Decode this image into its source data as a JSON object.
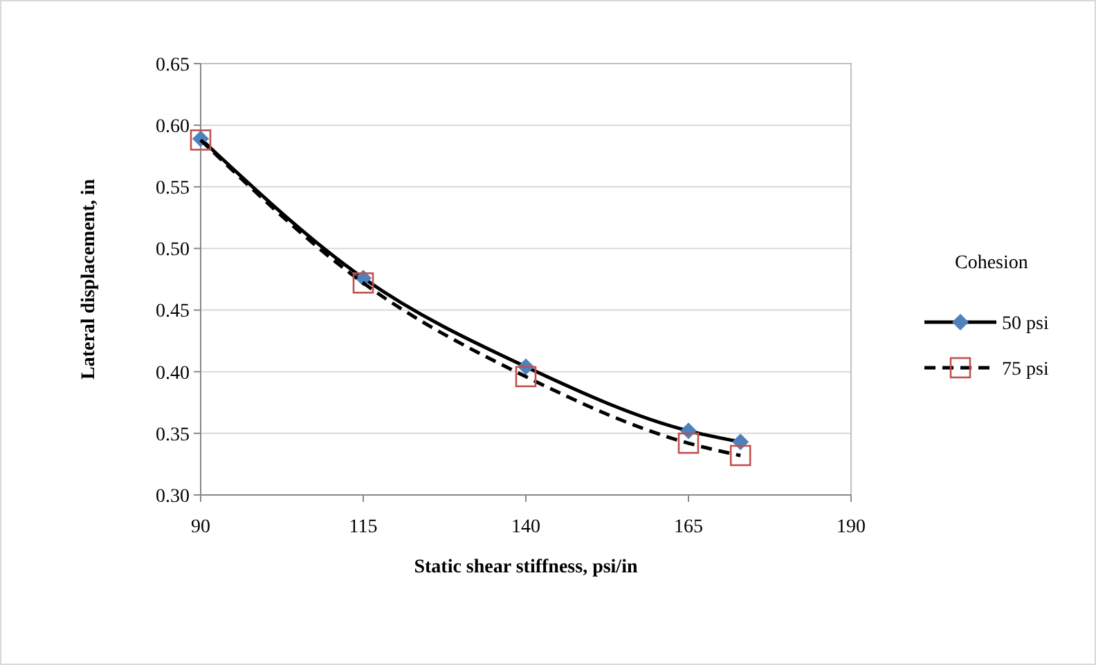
{
  "chart_data": {
    "type": "line",
    "xlabel": "Static shear stiffness, psi/in",
    "ylabel": "Lateral displacement, in",
    "legend_title": "Cohesion",
    "x": [
      90,
      115,
      140,
      165,
      173
    ],
    "series": [
      {
        "name": "50 psi",
        "color": "#4f81bd",
        "marker": "diamond",
        "line_style": "solid",
        "values": [
          0.589,
          0.476,
          0.404,
          0.352,
          0.343
        ]
      },
      {
        "name": "75 psi",
        "color": "#c0504d",
        "marker": "square",
        "line_style": "dashed",
        "values": [
          0.588,
          0.472,
          0.396,
          0.342,
          0.332
        ]
      }
    ],
    "xlim": [
      90,
      190
    ],
    "xticks": [
      90,
      115,
      140,
      165,
      190
    ],
    "ylim": [
      0.3,
      0.65
    ],
    "yticks": [
      {
        "value": 0.3,
        "label": "0.30"
      },
      {
        "value": 0.35,
        "label": "0.35"
      },
      {
        "value": 0.4,
        "label": "0.40"
      },
      {
        "value": 0.45,
        "label": "0.45"
      },
      {
        "value": 0.5,
        "label": "0.50"
      },
      {
        "value": 0.55,
        "label": "0.55"
      },
      {
        "value": 0.6,
        "label": "0.60"
      },
      {
        "value": 0.65,
        "label": "0.65"
      }
    ],
    "grid": "y",
    "legend": "right"
  }
}
